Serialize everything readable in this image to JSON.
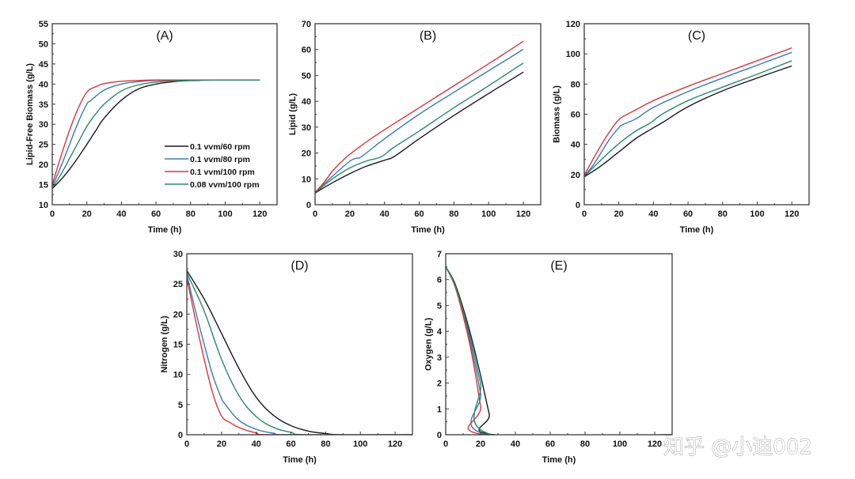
{
  "watermark": "知乎 @小迪002",
  "legend": {
    "panel": "A",
    "placement": "bottom-right"
  },
  "series_meta": [
    {
      "name": "0.1 vvm/60 rpm",
      "color": "#1a1a1a"
    },
    {
      "name": "0.1 vvm/80 rpm",
      "color": "#3a78b8"
    },
    {
      "name": "0.1 vvm/100 rpm",
      "color": "#d9363e"
    },
    {
      "name": "0.08 vvm/100 rpm",
      "color": "#2a8a64"
    }
  ],
  "chart_data": [
    {
      "id": "A",
      "type": "line",
      "title": "(A)",
      "xlabel": "Time (h)",
      "ylabel": "Lipid-Free Biomass (g/L)",
      "xlim": [
        0,
        130
      ],
      "ylim": [
        10,
        55
      ],
      "xticks": [
        0,
        20,
        40,
        60,
        80,
        100,
        120
      ],
      "yticks": [
        10,
        15,
        20,
        25,
        30,
        35,
        40,
        45,
        50,
        55
      ],
      "grid": false,
      "legend": "bottom-right",
      "series": [
        {
          "name": "0.1 vvm/60 rpm",
          "x": [
            0,
            5,
            10,
            15,
            20,
            25,
            30,
            40,
            50,
            60,
            70,
            80,
            100,
            120
          ],
          "y": [
            14,
            16.2,
            18.8,
            21.8,
            25,
            28.3,
            31.5,
            36,
            38.8,
            40,
            40.6,
            40.9,
            41,
            41
          ]
        },
        {
          "name": "0.1 vvm/80 rpm",
          "x": [
            0,
            5,
            10,
            15,
            20,
            22,
            30,
            40,
            50,
            60,
            80,
            100,
            120
          ],
          "y": [
            14.5,
            19.5,
            25,
            30.5,
            35,
            35.8,
            38.5,
            40,
            40.6,
            40.9,
            41,
            41,
            41
          ]
        },
        {
          "name": "0.1 vvm/100 rpm",
          "x": [
            0,
            5,
            10,
            15,
            20,
            25,
            30,
            40,
            50,
            60,
            80,
            100,
            120
          ],
          "y": [
            15,
            22,
            28.5,
            34,
            38,
            39.3,
            40.1,
            40.7,
            40.9,
            41,
            41,
            41,
            41
          ]
        },
        {
          "name": "0.08 vvm/100 rpm",
          "x": [
            0,
            5,
            10,
            15,
            20,
            25,
            30,
            40,
            50,
            60,
            70,
            80,
            100,
            120
          ],
          "y": [
            14.2,
            17.5,
            21.5,
            25.5,
            29.5,
            32.5,
            35,
            38.3,
            39.8,
            40.5,
            40.8,
            41,
            41,
            41
          ]
        }
      ]
    },
    {
      "id": "B",
      "type": "line",
      "title": "(B)",
      "xlabel": "Time (h)",
      "ylabel": "Lipid (g/L)",
      "xlim": [
        0,
        130
      ],
      "ylim": [
        0,
        70
      ],
      "xticks": [
        0,
        20,
        40,
        60,
        80,
        100,
        120
      ],
      "yticks": [
        0,
        10,
        20,
        30,
        40,
        50,
        60,
        70
      ],
      "grid": false,
      "series": [
        {
          "name": "0.1 vvm/60 rpm",
          "x": [
            0,
            10,
            20,
            30,
            40,
            46,
            60,
            80,
            100,
            120
          ],
          "y": [
            4.5,
            8.5,
            12,
            15,
            17.2,
            18.8,
            25.5,
            34.5,
            43,
            51.3
          ]
        },
        {
          "name": "0.1 vvm/80 rpm",
          "x": [
            0,
            10,
            20,
            24,
            27,
            40,
            60,
            80,
            100,
            120
          ],
          "y": [
            4.7,
            11,
            16.8,
            18,
            18.7,
            25.5,
            35,
            43.5,
            51.8,
            60.1
          ]
        },
        {
          "name": "0.1 vvm/100 rpm",
          "x": [
            0,
            5,
            10,
            15,
            20,
            30,
            40,
            60,
            80,
            100,
            120
          ],
          "y": [
            4.8,
            8.5,
            13,
            16.5,
            19.5,
            24.5,
            29,
            37.5,
            46,
            54.5,
            63.2
          ]
        },
        {
          "name": "0.08 vvm/100 rpm",
          "x": [
            0,
            10,
            20,
            30,
            38,
            45,
            60,
            80,
            100,
            120
          ],
          "y": [
            4.6,
            10,
            14.2,
            17,
            18.5,
            22,
            28.5,
            37.5,
            46,
            54.8
          ]
        }
      ]
    },
    {
      "id": "C",
      "type": "line",
      "title": "(C)",
      "xlabel": "Time (h)",
      "ylabel": "Biomass (g/L)",
      "xlim": [
        0,
        130
      ],
      "ylim": [
        0,
        120
      ],
      "xticks": [
        0,
        20,
        40,
        60,
        80,
        100,
        120
      ],
      "yticks": [
        0,
        20,
        40,
        60,
        80,
        100,
        120
      ],
      "grid": false,
      "series": [
        {
          "name": "0.1 vvm/60 rpm",
          "x": [
            0,
            10,
            20,
            30,
            40,
            46,
            60,
            80,
            100,
            120
          ],
          "y": [
            18.5,
            26,
            35,
            44,
            51,
            55,
            65,
            75.5,
            84,
            92
          ]
        },
        {
          "name": "0.1 vvm/80 rpm",
          "x": [
            0,
            5,
            10,
            15,
            20,
            22,
            30,
            40,
            60,
            80,
            100,
            120
          ],
          "y": [
            19,
            26,
            35,
            44,
            51,
            53,
            57,
            64.5,
            75,
            84,
            92.5,
            101
          ]
        },
        {
          "name": "0.1 vvm/100 rpm",
          "x": [
            0,
            5,
            10,
            15,
            20,
            25,
            30,
            40,
            60,
            80,
            100,
            120
          ],
          "y": [
            19.5,
            30,
            40,
            49,
            56.5,
            60,
            63,
            69,
            78.5,
            87,
            95.5,
            104
          ]
        },
        {
          "name": "0.08 vvm/100 rpm",
          "x": [
            0,
            10,
            20,
            30,
            38,
            45,
            60,
            80,
            100,
            120
          ],
          "y": [
            18.8,
            30,
            40.5,
            49,
            54,
            60,
            69,
            78,
            86.5,
            95.5
          ]
        }
      ]
    },
    {
      "id": "D",
      "type": "line",
      "title": "(D)",
      "xlabel": "Time (h)",
      "ylabel": "Nitrogen (g/L)",
      "xlim": [
        0,
        130
      ],
      "ylim": [
        0,
        30
      ],
      "xticks": [
        0,
        20,
        40,
        60,
        80,
        100,
        120
      ],
      "yticks": [
        0,
        5,
        10,
        15,
        20,
        25,
        30
      ],
      "grid": false,
      "series": [
        {
          "name": "0.1 vvm/60 rpm",
          "x": [
            0,
            10,
            20,
            30,
            40,
            50,
            60,
            70,
            80,
            90,
            130
          ],
          "y": [
            27.2,
            22.5,
            16.8,
            11,
            6.2,
            3.2,
            1.5,
            0.6,
            0.2,
            0,
            0
          ]
        },
        {
          "name": "0.1 vvm/80 rpm",
          "x": [
            0,
            5,
            10,
            15,
            20,
            22,
            30,
            40,
            50,
            60,
            130
          ],
          "y": [
            26.5,
            20.5,
            15,
            9.8,
            6,
            5.1,
            2.4,
            0.9,
            0.25,
            0,
            0
          ]
        },
        {
          "name": "0.1 vvm/100 rpm",
          "x": [
            0,
            5,
            10,
            15,
            20,
            25,
            30,
            40,
            50,
            130
          ],
          "y": [
            26,
            19,
            12.5,
            6.8,
            3.1,
            2,
            1.2,
            0.3,
            0,
            0
          ]
        },
        {
          "name": "0.08 vvm/100 rpm",
          "x": [
            0,
            10,
            20,
            30,
            40,
            50,
            60,
            70,
            130
          ],
          "y": [
            26.8,
            20.5,
            12.5,
            6.5,
            3,
            1.2,
            0.4,
            0,
            0
          ]
        }
      ]
    },
    {
      "id": "E",
      "type": "line",
      "title": "(E)",
      "xlabel": "Time (h)",
      "ylabel": "Oxygen (g/L)",
      "xlim": [
        0,
        130
      ],
      "ylim": [
        0,
        7
      ],
      "xticks": [
        0,
        20,
        40,
        60,
        80,
        100,
        120
      ],
      "yticks": [
        0,
        1,
        2,
        3,
        4,
        5,
        6,
        7
      ],
      "grid": false,
      "series": [
        {
          "name": "0.1 vvm/60 rpm",
          "x": [
            0,
            5,
            10,
            15,
            20,
            25,
            28,
            130
          ],
          "y": [
            6.5,
            5.9,
            4.9,
            3.7,
            2.3,
            0.8,
            0,
            0
          ]
        },
        {
          "name": "0.1 vvm/80 rpm",
          "x": [
            0,
            5,
            10,
            15,
            20,
            24,
            130
          ],
          "y": [
            6.5,
            5.8,
            4.7,
            3.3,
            1.6,
            0,
            0
          ]
        },
        {
          "name": "0.1 vvm/100 rpm",
          "x": [
            0,
            5,
            10,
            15,
            20,
            22,
            130
          ],
          "y": [
            6.5,
            5.8,
            4.6,
            3.1,
            1.1,
            0,
            0
          ]
        },
        {
          "name": "0.08 vvm/100 rpm",
          "x": [
            0,
            5,
            10,
            15,
            20,
            26.5,
            130
          ],
          "y": [
            6.5,
            5.85,
            4.8,
            3.5,
            2.0,
            0,
            0
          ]
        }
      ]
    }
  ]
}
